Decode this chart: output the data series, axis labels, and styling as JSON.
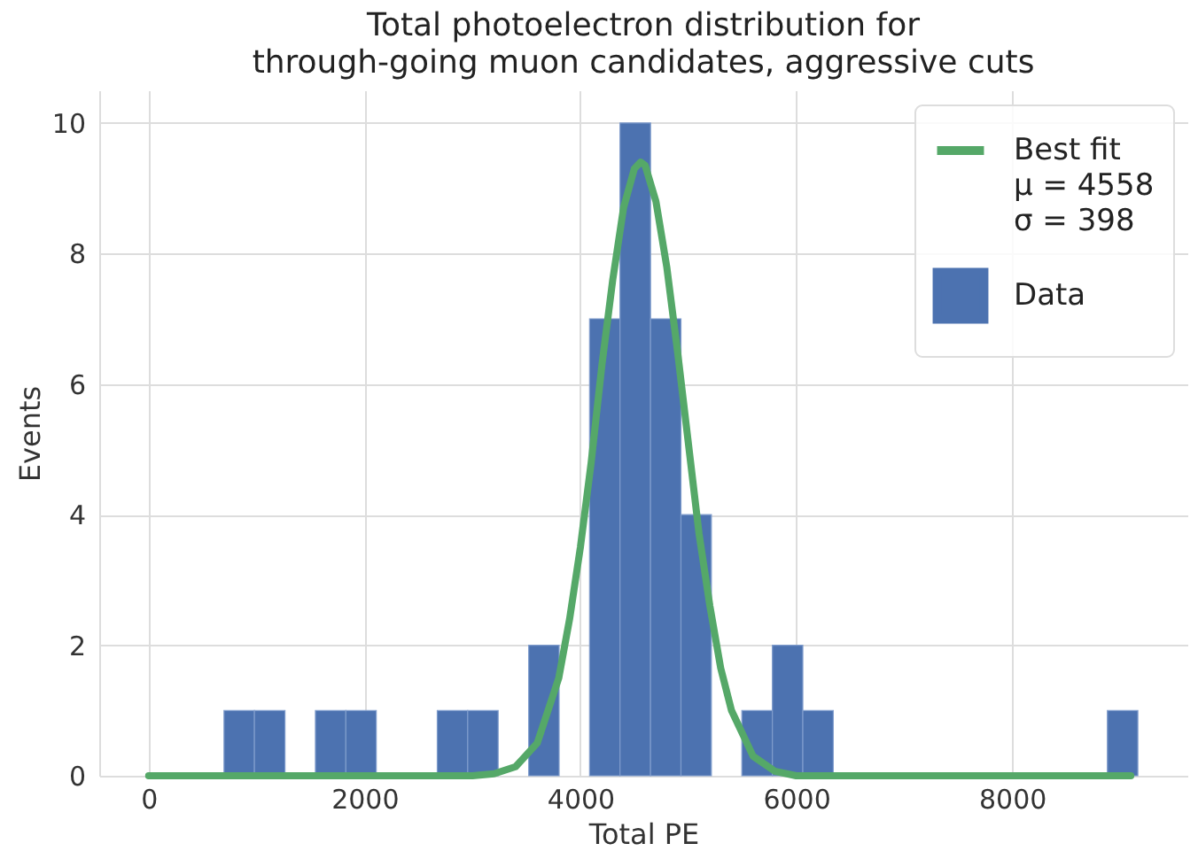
{
  "chart_data": {
    "type": "histogram",
    "title": "Total photoelectron distribution for\nthrough-going muon candidates, aggressive cuts",
    "xlabel": "Total PE",
    "ylabel": "Events",
    "bins": [
      698,
      980,
      1263,
      1545,
      1827,
      2109,
      2392,
      2674,
      2956,
      3238,
      3521,
      3803,
      4085,
      4367,
      4650,
      4932,
      5214,
      5496,
      5779,
      6061,
      6343,
      6625,
      6907,
      7190,
      7472,
      7754,
      8036,
      8318,
      8601,
      8883,
      9165
    ],
    "series": [
      {
        "name": "Best fit\n μ = 4558\n σ = 398",
        "type": "line",
        "color": "#55a868",
        "x": [
          0,
          3000,
          3200,
          3400,
          3600,
          3800,
          3900,
          4000,
          4100,
          4200,
          4300,
          4400,
          4500,
          4558,
          4600,
          4700,
          4800,
          4900,
          5000,
          5100,
          5200,
          5300,
          5400,
          5600,
          5800,
          6000,
          9100
        ],
        "values": [
          0,
          0,
          0.03,
          0.14,
          0.5,
          1.5,
          2.4,
          3.5,
          4.8,
          6.3,
          7.6,
          8.7,
          9.3,
          9.4,
          9.35,
          8.8,
          7.8,
          6.5,
          5.1,
          3.7,
          2.6,
          1.65,
          1.0,
          0.3,
          0.07,
          0,
          0
        ]
      },
      {
        "name": "Data",
        "type": "histogram",
        "color": "#4c72b0",
        "values": [
          1,
          1,
          0,
          1,
          1,
          0,
          0,
          1,
          1,
          0,
          2,
          0,
          7,
          10,
          7,
          4,
          0,
          1,
          2,
          1,
          0,
          0,
          0,
          0,
          0,
          0,
          0,
          0,
          0,
          1
        ]
      }
    ],
    "xlim": [
      -458,
      9624
    ],
    "xticks": [
      0,
      2000,
      4000,
      6000,
      8000
    ],
    "ylim": [
      0,
      10.5
    ],
    "yticks": [
      0,
      2,
      4,
      6,
      8,
      10
    ],
    "grid": true,
    "legend": "top right"
  }
}
